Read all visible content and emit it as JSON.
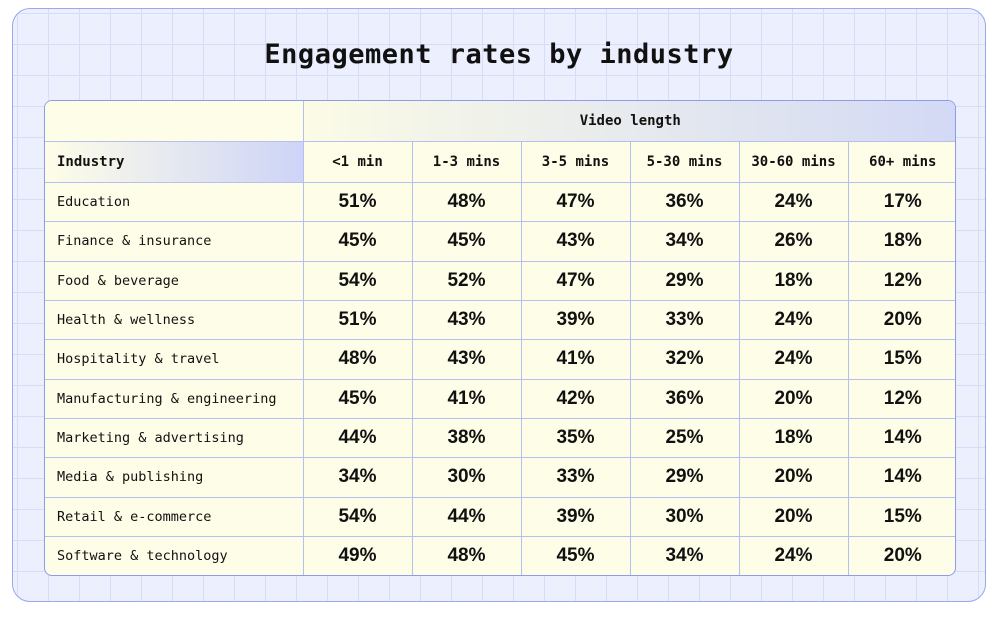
{
  "title": "Engagement rates by industry",
  "colors": {
    "background": "#eceffe",
    "grid": "#d8ddf7",
    "table_bg": "#fefde8",
    "border": "#8e9be8",
    "header_gradient_end": "#d3d9f5"
  },
  "chart_data": {
    "type": "table",
    "title": "Engagement rates by industry",
    "group_header": "Video length",
    "row_header": "Industry",
    "columns": [
      "<1 min",
      "1-3 mins",
      "3-5 mins",
      "5-30 mins",
      "30-60 mins",
      "60+ mins"
    ],
    "rows": [
      {
        "label": "Education",
        "values": [
          "51%",
          "48%",
          "47%",
          "36%",
          "24%",
          "17%"
        ]
      },
      {
        "label": "Finance & insurance",
        "values": [
          "45%",
          "45%",
          "43%",
          "34%",
          "26%",
          "18%"
        ]
      },
      {
        "label": "Food & beverage",
        "values": [
          "54%",
          "52%",
          "47%",
          "29%",
          "18%",
          "12%"
        ]
      },
      {
        "label": "Health & wellness",
        "values": [
          "51%",
          "43%",
          "39%",
          "33%",
          "24%",
          "20%"
        ]
      },
      {
        "label": "Hospitality & travel",
        "values": [
          "48%",
          "43%",
          "41%",
          "32%",
          "24%",
          "15%"
        ]
      },
      {
        "label": "Manufacturing & engineering",
        "values": [
          "45%",
          "41%",
          "42%",
          "36%",
          "20%",
          "12%"
        ]
      },
      {
        "label": "Marketing & advertising",
        "values": [
          "44%",
          "38%",
          "35%",
          "25%",
          "18%",
          "14%"
        ]
      },
      {
        "label": "Media & publishing",
        "values": [
          "34%",
          "30%",
          "33%",
          "29%",
          "20%",
          "14%"
        ]
      },
      {
        "label": "Retail & e-commerce",
        "values": [
          "54%",
          "44%",
          "39%",
          "30%",
          "20%",
          "15%"
        ]
      },
      {
        "label": "Software & technology",
        "values": [
          "49%",
          "48%",
          "45%",
          "34%",
          "24%",
          "20%"
        ]
      }
    ]
  }
}
